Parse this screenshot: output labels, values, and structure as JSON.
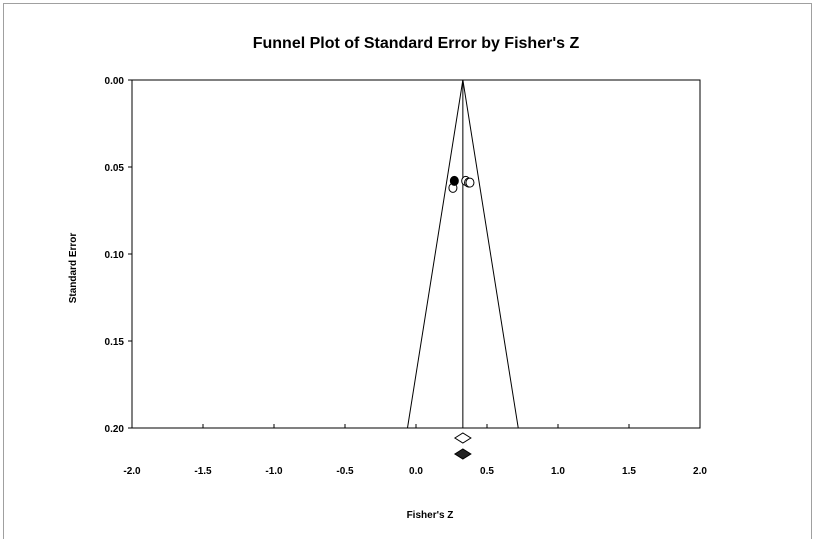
{
  "chart_data": {
    "type": "scatter",
    "title": "Funnel Plot of Standard Error by Fisher's Z",
    "xlabel": "Fisher's Z",
    "ylabel": "Standard Error",
    "xlim": [
      -2.0,
      2.0
    ],
    "ylim": [
      0.0,
      0.2
    ],
    "y_reversed": true,
    "x_ticks": [
      "-2.0",
      "-1.5",
      "-1.0",
      "-0.5",
      "0.0",
      "0.5",
      "1.0",
      "1.5",
      "2.0"
    ],
    "y_ticks": [
      "0.00",
      "0.05",
      "0.10",
      "0.15",
      "0.20"
    ],
    "pooled_estimate": 0.33,
    "funnel": {
      "apex_se": 0.0,
      "base_se": 0.2,
      "base_left": -0.06,
      "base_right": 0.72
    },
    "studies": [
      {
        "z": 0.26,
        "se": 0.062,
        "filled": false
      },
      {
        "z": 0.27,
        "se": 0.058,
        "filled": true
      },
      {
        "z": 0.35,
        "se": 0.058,
        "filled": false
      },
      {
        "z": 0.37,
        "se": 0.059,
        "filled": false
      },
      {
        "z": 0.38,
        "se": 0.059,
        "filled": false
      }
    ],
    "summary_diamonds": [
      {
        "z": 0.33,
        "filled": false
      },
      {
        "z": 0.33,
        "filled": true
      }
    ],
    "grid": false,
    "legend": "none"
  }
}
